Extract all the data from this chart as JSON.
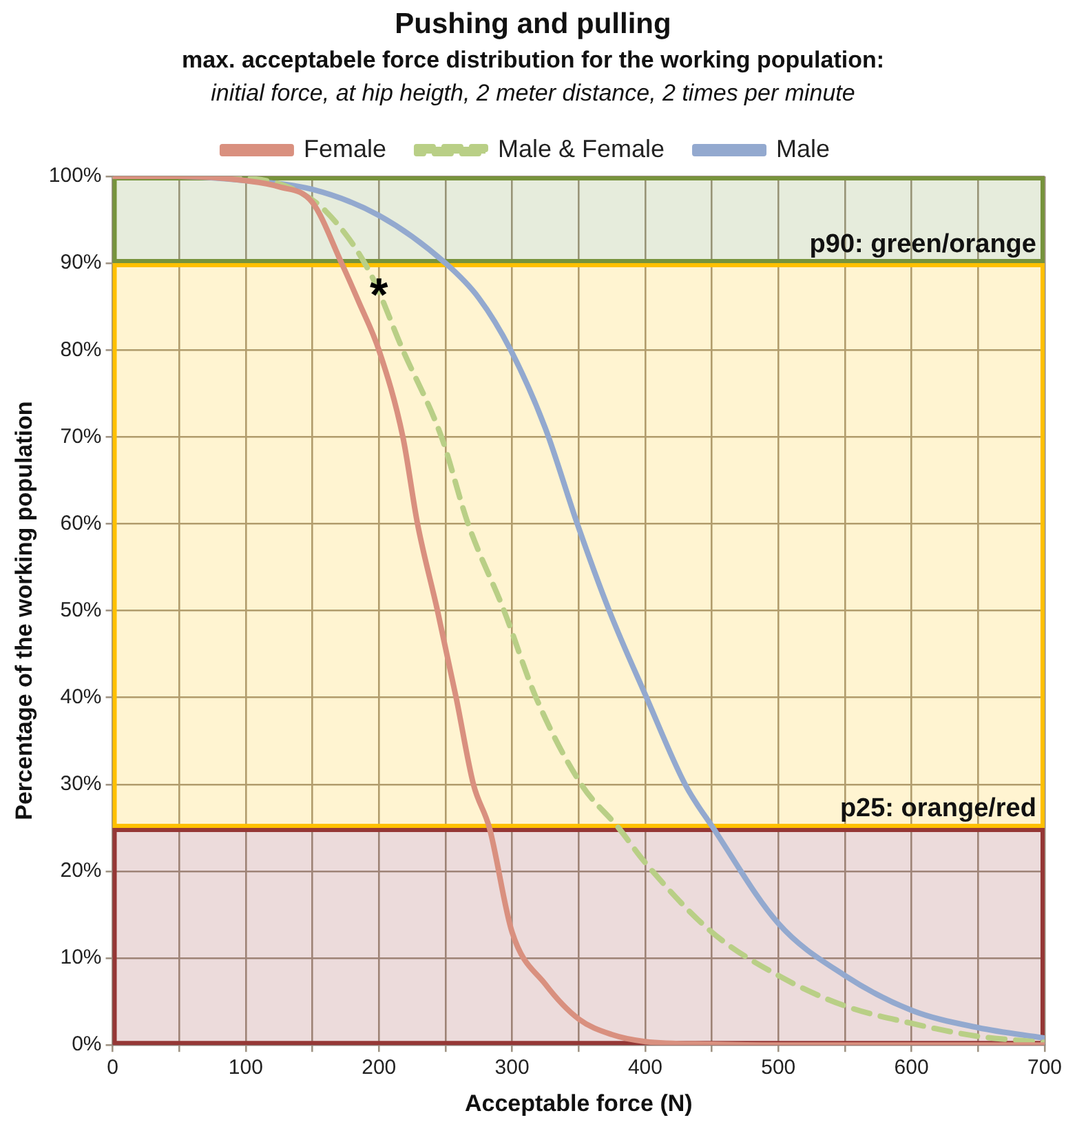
{
  "chart_data": {
    "type": "line",
    "title": "Pushing and pulling",
    "subtitle": "max. acceptabele force distribution for the working population:",
    "annotations": [
      "initial force, at hip heigth, 2 meter distance, 2 times per minute",
      {
        "text": "*",
        "x": 200,
        "y": 87
      }
    ],
    "xlabel": "Acceptable force (N)",
    "ylabel": "Percentage of the working population",
    "series": [
      {
        "name": "Female",
        "color": "#d9907f",
        "line_style": "solid",
        "x": [
          0,
          50,
          100,
          125,
          150,
          172,
          185,
          200,
          218,
          229,
          244,
          258,
          271,
          283,
          300,
          325,
          350,
          375,
          400,
          450,
          500,
          600,
          700
        ],
        "values": [
          100,
          100,
          99.5,
          98.8,
          97,
          90,
          85.5,
          80,
          70,
          60,
          50,
          40,
          30,
          25,
          13,
          7,
          3,
          1.2,
          0.4,
          0.1,
          0,
          0,
          0
        ]
      },
      {
        "name": "Male & Female",
        "color": "#b9cf86",
        "line_style": "dashed",
        "x": [
          0,
          50,
          100,
          133,
          160,
          193,
          218,
          247,
          267,
          294,
          318,
          352,
          380,
          400,
          450,
          500,
          550,
          600,
          650,
          700
        ],
        "values": [
          100,
          100,
          99.8,
          98.7,
          96,
          89,
          80,
          70,
          60,
          50,
          40,
          30,
          25,
          21,
          13,
          8,
          4.5,
          2.5,
          1,
          0.3
        ]
      },
      {
        "name": "Male",
        "color": "#93a9cf",
        "line_style": "solid",
        "x": [
          0,
          50,
          100,
          150,
          200,
          250,
          275,
          299,
          325,
          349,
          373,
          401,
          430,
          451,
          500,
          550,
          600,
          650,
          700
        ],
        "values": [
          100,
          100,
          99.5,
          98.5,
          95.5,
          90,
          86,
          80,
          71,
          60,
          50,
          40,
          30,
          25,
          14,
          8,
          4,
          2,
          0.8
        ]
      }
    ],
    "bands": [
      {
        "axis": "y",
        "from": 90,
        "to": 100,
        "label": "p90: green/orange",
        "color": "#77933c"
      },
      {
        "axis": "y",
        "from": 25,
        "to": 90,
        "label": "p25: orange/red",
        "color": "#ffc000"
      },
      {
        "axis": "y",
        "from": 0,
        "to": 25,
        "color": "#953735"
      }
    ],
    "xlim": [
      0,
      700
    ],
    "xticks": [
      0,
      {
        "value": 50,
        "label": null
      },
      100,
      {
        "value": 150,
        "label": null
      },
      200,
      {
        "value": 250,
        "label": null
      },
      300,
      {
        "value": 350,
        "label": null
      },
      400,
      {
        "value": 450,
        "label": null
      },
      500,
      {
        "value": 550,
        "label": null
      },
      600,
      {
        "value": 650,
        "label": null
      },
      700
    ],
    "ylim": [
      0,
      100
    ],
    "yticks": [
      {
        "value": 0,
        "label": "0%"
      },
      {
        "value": 10,
        "label": "10%"
      },
      {
        "value": 20,
        "label": "20%"
      },
      {
        "value": 30,
        "label": "30%"
      },
      {
        "value": 40,
        "label": "40%"
      },
      {
        "value": 50,
        "label": "50%"
      },
      {
        "value": 60,
        "label": "60%"
      },
      {
        "value": 70,
        "label": "70%"
      },
      {
        "value": 80,
        "label": "80%"
      },
      {
        "value": 90,
        "label": "90%"
      },
      {
        "value": 100,
        "label": "100%"
      }
    ],
    "grid": true,
    "legend": "top"
  }
}
